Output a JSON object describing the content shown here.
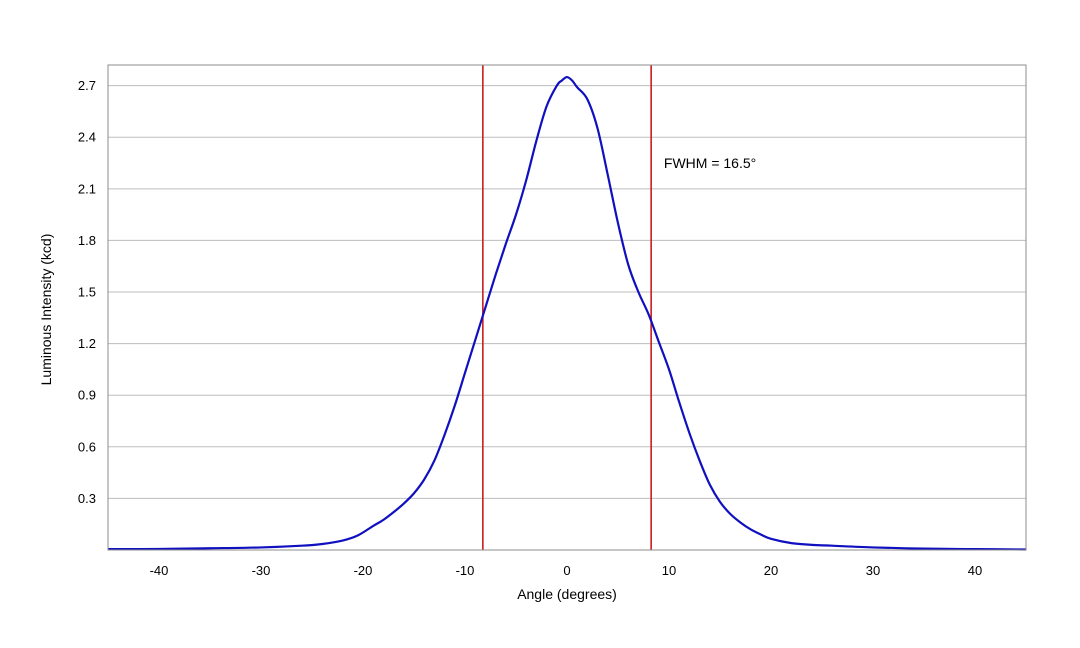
{
  "chart_data": {
    "type": "line",
    "title": "",
    "xlabel": "Angle (degrees)",
    "ylabel": "Luminous Intensity (kcd)",
    "xlim": [
      -45,
      45
    ],
    "ylim": [
      0,
      2.82
    ],
    "x_ticks": [
      -40,
      -30,
      -20,
      -10,
      0,
      10,
      20,
      30,
      40
    ],
    "y_ticks": [
      0.3,
      0.6,
      0.9,
      1.2,
      1.5,
      1.8,
      2.1,
      2.4,
      2.7
    ],
    "grid": "horizontal",
    "colors": {
      "curve": "#1010c0",
      "markers": "#c81e1e",
      "grid": "#bdbdbd",
      "frame": "#8c8c8c"
    },
    "series": [
      {
        "x": [
          -45,
          -40,
          -35,
          -30,
          -26,
          -24,
          -22,
          -20.5,
          -19,
          -18,
          -17,
          -16,
          -15,
          -14,
          -13,
          -12,
          -11,
          -10,
          -9,
          -8,
          -7,
          -6,
          -5,
          -4,
          -3,
          -2,
          -1,
          -0.5,
          0,
          0.5,
          1,
          2,
          3,
          4,
          5,
          6,
          7,
          8,
          9,
          10,
          11,
          12,
          13,
          14,
          15,
          16,
          17,
          18,
          19,
          20,
          22,
          24,
          26,
          30,
          35,
          40,
          45
        ],
        "y": [
          0.005,
          0.006,
          0.01,
          0.015,
          0.025,
          0.035,
          0.055,
          0.085,
          0.14,
          0.175,
          0.22,
          0.27,
          0.33,
          0.41,
          0.52,
          0.67,
          0.84,
          1.03,
          1.22,
          1.41,
          1.6,
          1.78,
          1.95,
          2.15,
          2.38,
          2.58,
          2.7,
          2.73,
          2.75,
          2.73,
          2.69,
          2.62,
          2.45,
          2.18,
          1.9,
          1.66,
          1.5,
          1.37,
          1.21,
          1.05,
          0.86,
          0.68,
          0.52,
          0.38,
          0.28,
          0.21,
          0.16,
          0.12,
          0.09,
          0.065,
          0.04,
          0.03,
          0.025,
          0.015,
          0.008,
          0.005,
          0.003
        ]
      }
    ],
    "markers": [
      {
        "x": -8.25
      },
      {
        "x": 8.25
      }
    ],
    "annotation": {
      "text": "FWHM = 16.5°",
      "x": 9.5,
      "y": 2.25
    }
  }
}
